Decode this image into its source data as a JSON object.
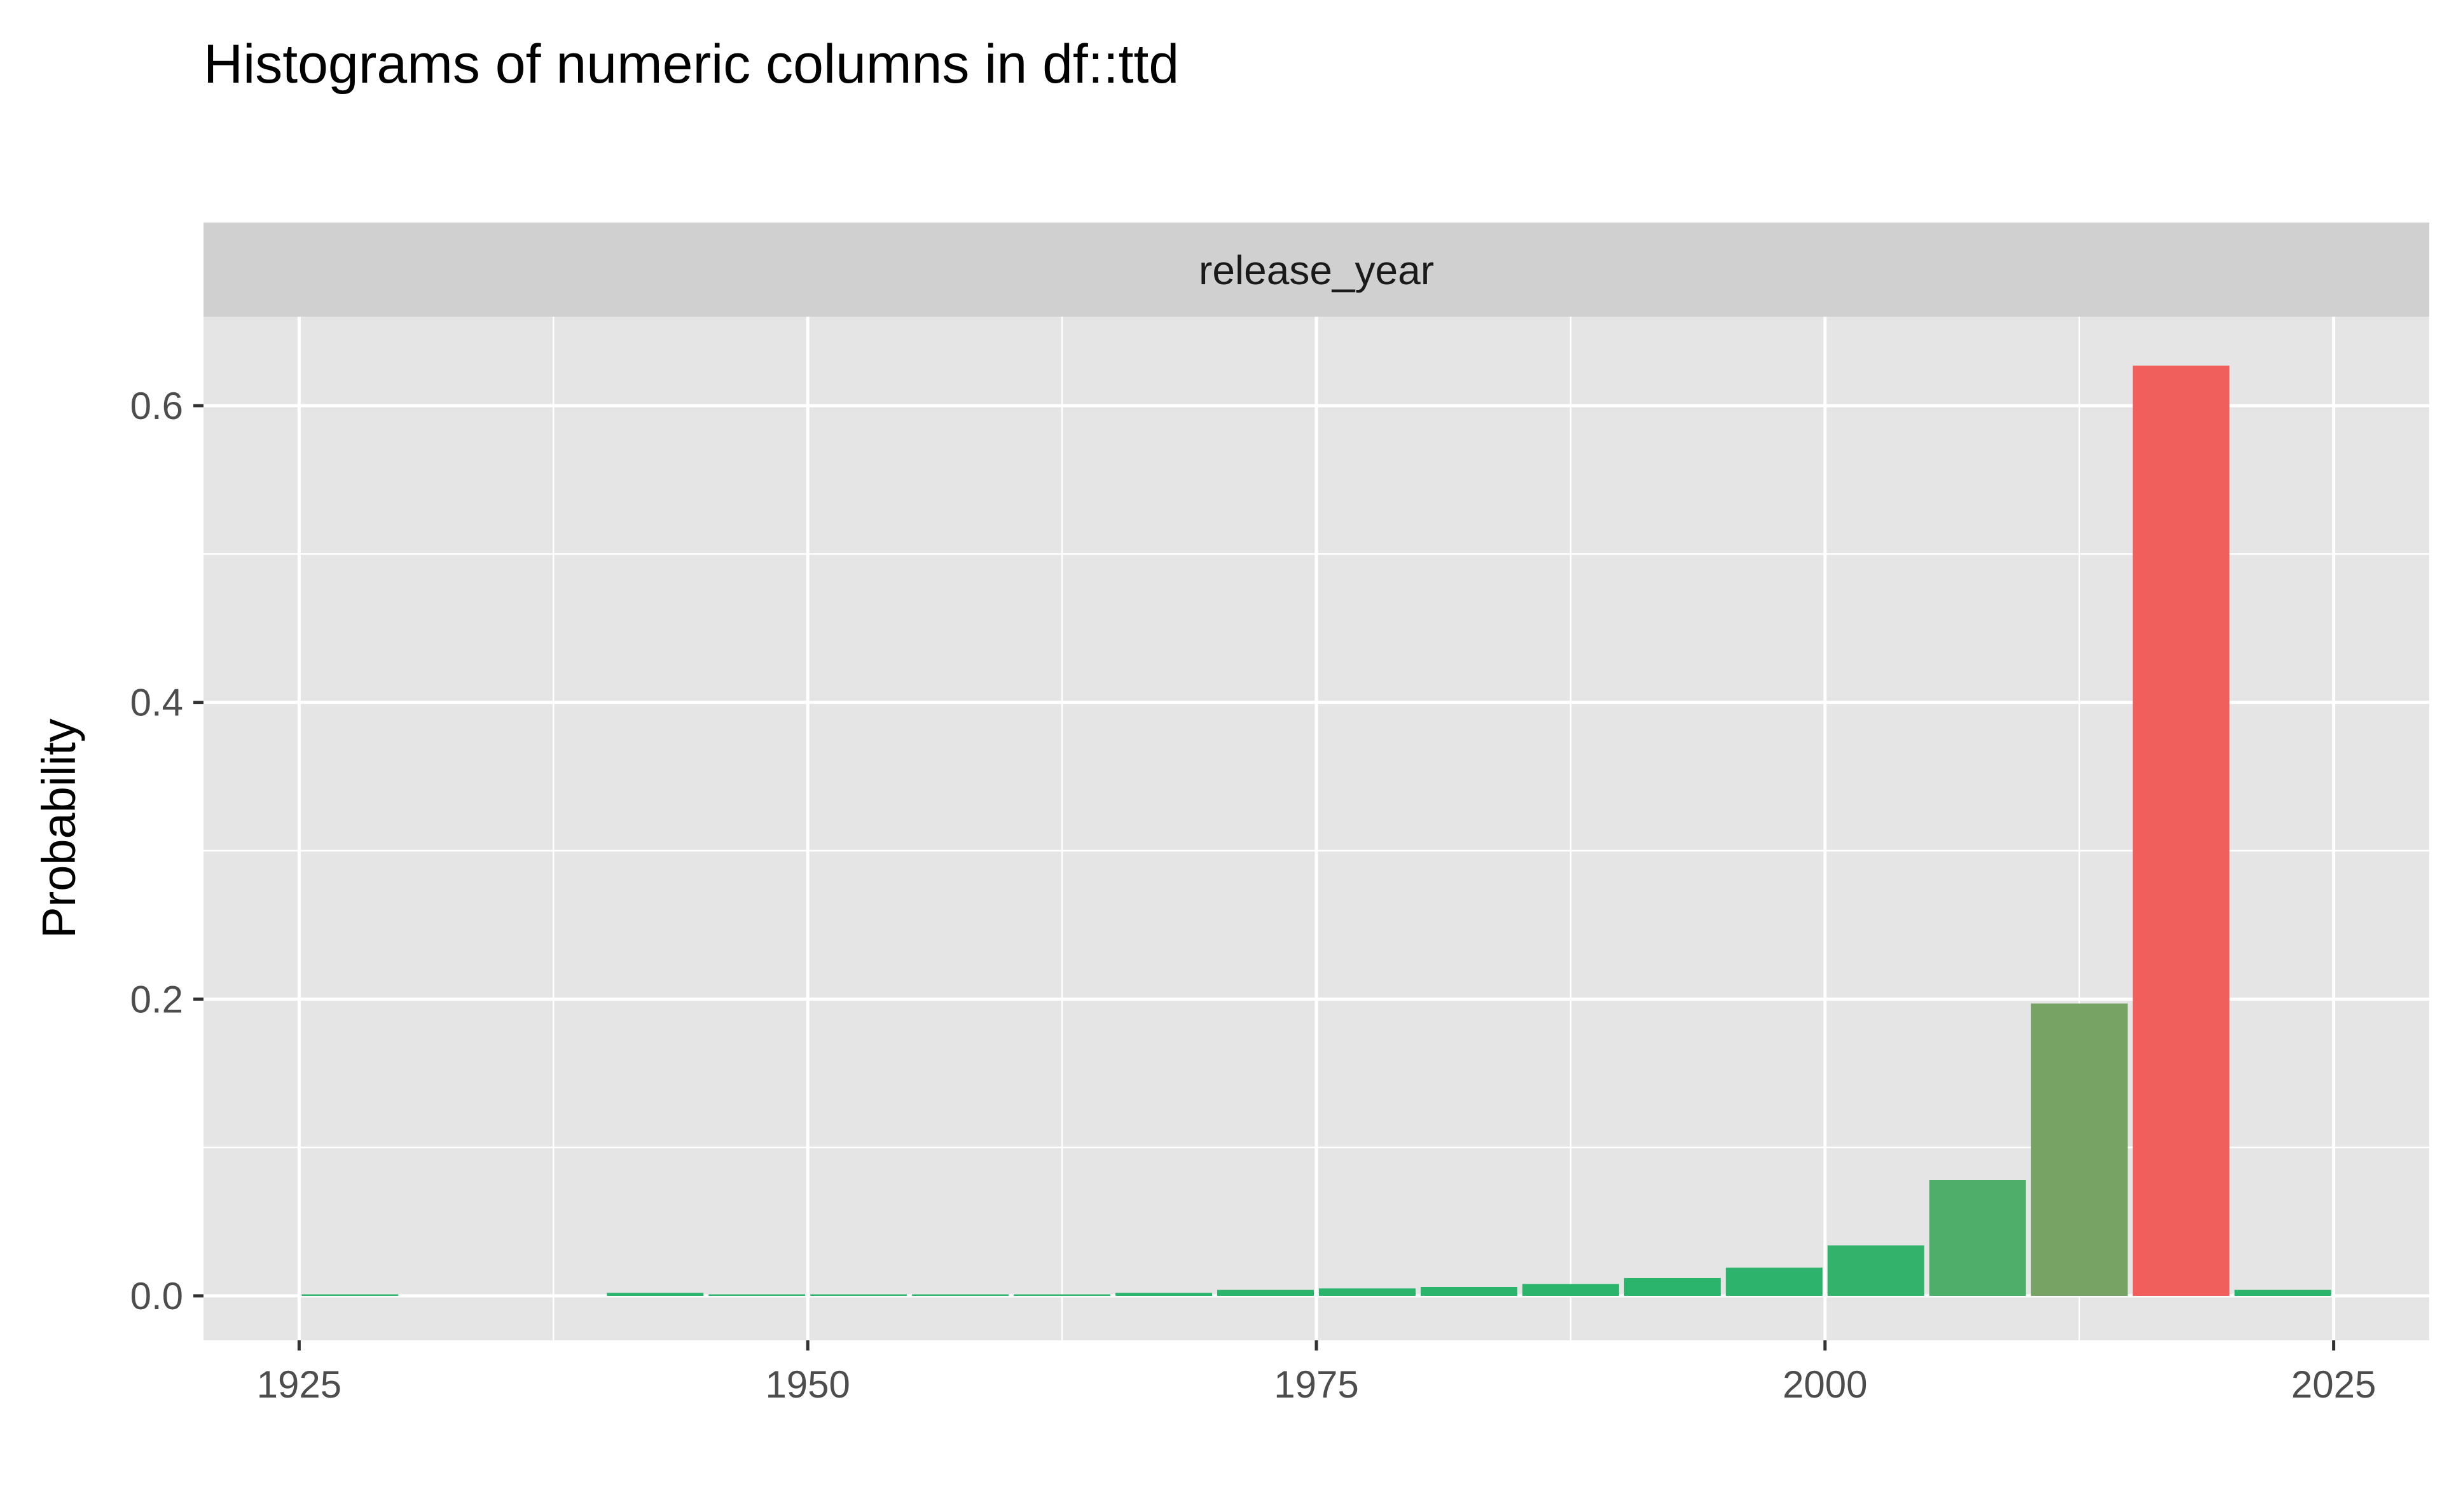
{
  "title": "Histograms of numeric columns in df::ttd",
  "chart_data": {
    "type": "bar",
    "facet": "release_year",
    "ylabel": "Probability",
    "xlabel": "",
    "xlim": [
      1920.3,
      2029.7
    ],
    "ylim": [
      -0.03,
      0.66
    ],
    "x_ticks": [
      1925,
      1950,
      1975,
      2000,
      2025
    ],
    "x_tick_labels": [
      "1925",
      "1950",
      "1975",
      "2000",
      "2025"
    ],
    "y_ticks": [
      0.0,
      0.2,
      0.4,
      0.6
    ],
    "y_tick_labels": [
      "0.0",
      "0.2",
      "0.4",
      "0.6"
    ],
    "grid": true,
    "legend": "none",
    "bin_width": 5,
    "x": [
      1927.5,
      1942.5,
      1947.5,
      1952.5,
      1957.5,
      1962.5,
      1967.5,
      1972.5,
      1977.5,
      1982.5,
      1987.5,
      1992.5,
      1997.5,
      2002.5,
      2007.5,
      2012.5,
      2017.5,
      2022.5
    ],
    "values": [
      0.001,
      0.002,
      0.001,
      0.001,
      0.001,
      0.001,
      0.002,
      0.004,
      0.005,
      0.006,
      0.008,
      0.012,
      0.019,
      0.034,
      0.078,
      0.197,
      0.627,
      0.004
    ],
    "colors": [
      "#2bb56c",
      "#2bb56c",
      "#2bb56c",
      "#2bb56c",
      "#2bb56c",
      "#2bb56c",
      "#2bb56c",
      "#2bb56c",
      "#2bb56c",
      "#2bb56c",
      "#2bb56c",
      "#2bb56c",
      "#2db36b",
      "#33b26b",
      "#4fae69",
      "#77a465",
      "#f15f5d",
      "#2bb56c"
    ],
    "panel_background": "#e5e5e5",
    "strip_background": "#d0d0d0",
    "grid_color": "#ffffff"
  }
}
